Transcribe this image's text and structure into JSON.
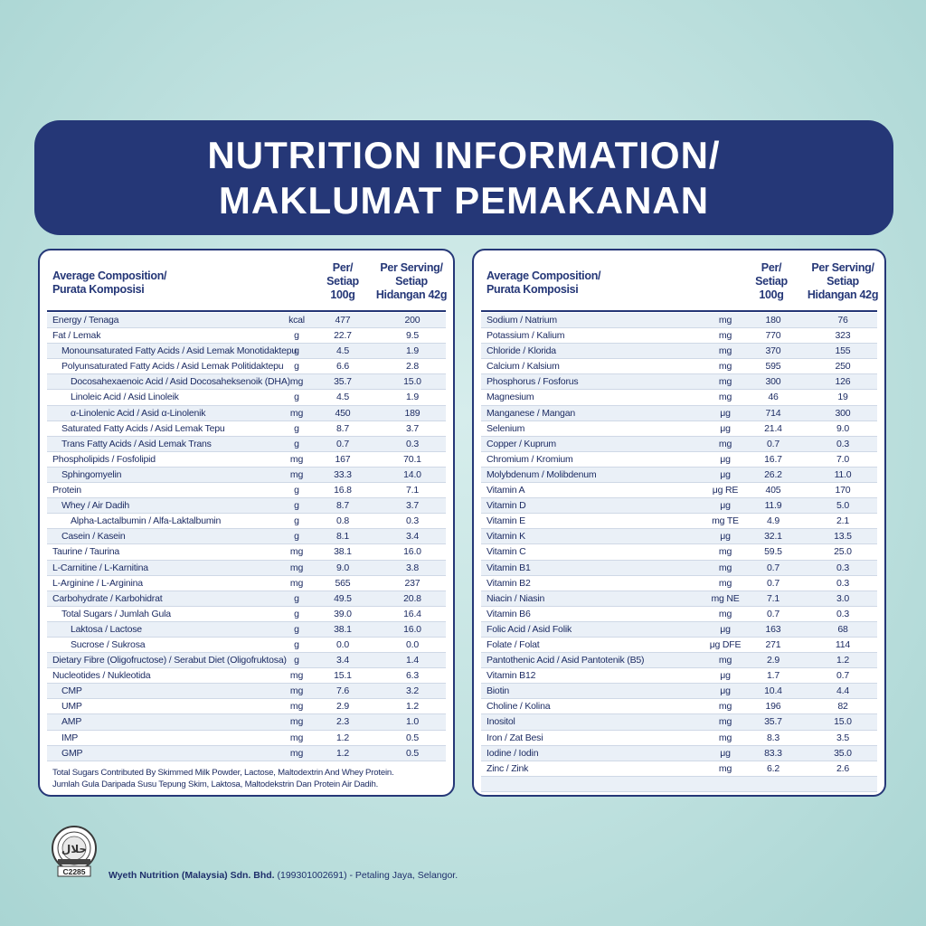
{
  "banner": {
    "line1": "NUTRITION INFORMATION/",
    "line2": "MAKLUMAT PEMAKANAN"
  },
  "left": {
    "header": {
      "title_line1": "Average Composition/",
      "title_line2": "Purata Komposisi",
      "col1_line1": "Per/",
      "col1_line2": "Setiap",
      "col1_line3": "100g",
      "col2_line1": "Per Serving/",
      "col2_line2": "Setiap",
      "col2_line3": "Hidangan 42g"
    },
    "rows": [
      {
        "name": "Energy / Tenaga",
        "indent": 0,
        "unit": "kcal",
        "v1": "477",
        "v2": "200"
      },
      {
        "name": "Fat / Lemak",
        "indent": 0,
        "unit": "g",
        "v1": "22.7",
        "v2": "9.5"
      },
      {
        "name": "Monounsaturated Fatty Acids / Asid Lemak Monotidaktepu",
        "indent": 1,
        "unit": "g",
        "v1": "4.5",
        "v2": "1.9"
      },
      {
        "name": "Polyunsaturated Fatty Acids / Asid Lemak Politidaktepu",
        "indent": 1,
        "unit": "g",
        "v1": "6.6",
        "v2": "2.8"
      },
      {
        "name": "Docosahexaenoic Acid / Asid Docosaheksenoik (DHA)",
        "indent": 2,
        "unit": "mg",
        "v1": "35.7",
        "v2": "15.0"
      },
      {
        "name": "Linoleic Acid / Asid Linoleik",
        "indent": 2,
        "unit": "g",
        "v1": "4.5",
        "v2": "1.9"
      },
      {
        "name": "α-Linolenic Acid / Asid α-Linolenik",
        "indent": 2,
        "unit": "mg",
        "v1": "450",
        "v2": "189"
      },
      {
        "name": "Saturated Fatty Acids / Asid Lemak Tepu",
        "indent": 1,
        "unit": "g",
        "v1": "8.7",
        "v2": "3.7"
      },
      {
        "name": "Trans Fatty Acids / Asid Lemak Trans",
        "indent": 1,
        "unit": "g",
        "v1": "0.7",
        "v2": "0.3"
      },
      {
        "name": "Phospholipids / Fosfolipid",
        "indent": 0,
        "unit": "mg",
        "v1": "167",
        "v2": "70.1"
      },
      {
        "name": "Sphingomyelin",
        "indent": 1,
        "unit": "mg",
        "v1": "33.3",
        "v2": "14.0"
      },
      {
        "name": "Protein",
        "indent": 0,
        "unit": "g",
        "v1": "16.8",
        "v2": "7.1"
      },
      {
        "name": "Whey / Air Dadih",
        "indent": 1,
        "unit": "g",
        "v1": "8.7",
        "v2": "3.7"
      },
      {
        "name": "Alpha-Lactalbumin / Alfa-Laktalbumin",
        "indent": 2,
        "unit": "g",
        "v1": "0.8",
        "v2": "0.3"
      },
      {
        "name": "Casein / Kasein",
        "indent": 1,
        "unit": "g",
        "v1": "8.1",
        "v2": "3.4"
      },
      {
        "name": "Taurine / Taurina",
        "indent": 0,
        "unit": "mg",
        "v1": "38.1",
        "v2": "16.0"
      },
      {
        "name": "L-Carnitine / L-Karnitina",
        "indent": 0,
        "unit": "mg",
        "v1": "9.0",
        "v2": "3.8"
      },
      {
        "name": "L-Arginine / L-Arginina",
        "indent": 0,
        "unit": "mg",
        "v1": "565",
        "v2": "237"
      },
      {
        "name": "Carbohydrate / Karbohidrat",
        "indent": 0,
        "unit": "g",
        "v1": "49.5",
        "v2": "20.8"
      },
      {
        "name": "Total Sugars / Jumlah Gula",
        "indent": 1,
        "unit": "g",
        "v1": "39.0",
        "v2": "16.4"
      },
      {
        "name": "Laktosa / Lactose",
        "indent": 2,
        "unit": "g",
        "v1": "38.1",
        "v2": "16.0"
      },
      {
        "name": "Sucrose / Sukrosa",
        "indent": 2,
        "unit": "g",
        "v1": "0.0",
        "v2": "0.0"
      },
      {
        "name": "Dietary Fibre (Oligofructose) / Serabut Diet (Oligofruktosa)",
        "indent": 0,
        "unit": "g",
        "v1": "3.4",
        "v2": "1.4"
      },
      {
        "name": "Nucleotides / Nukleotida",
        "indent": 0,
        "unit": "mg",
        "v1": "15.1",
        "v2": "6.3"
      },
      {
        "name": "CMP",
        "indent": 1,
        "unit": "mg",
        "v1": "7.6",
        "v2": "3.2"
      },
      {
        "name": "UMP",
        "indent": 1,
        "unit": "mg",
        "v1": "2.9",
        "v2": "1.2"
      },
      {
        "name": "AMP",
        "indent": 1,
        "unit": "mg",
        "v1": "2.3",
        "v2": "1.0"
      },
      {
        "name": "IMP",
        "indent": 1,
        "unit": "mg",
        "v1": "1.2",
        "v2": "0.5"
      },
      {
        "name": "GMP",
        "indent": 1,
        "unit": "mg",
        "v1": "1.2",
        "v2": "0.5"
      }
    ],
    "note_line1": "Total Sugars Contributed By Skimmed Milk Powder, Lactose, Maltodextrin And Whey Protein.",
    "note_line2": "Jumlah Gula Daripada Susu Tepung Skim, Laktosa, Maltodekstrin Dan Protein Air Dadih."
  },
  "right": {
    "header": {
      "title_line1": "Average Composition/",
      "title_line2": "Purata Komposisi",
      "col1_line1": "Per/",
      "col1_line2": "Setiap",
      "col1_line3": "100g",
      "col2_line1": "Per Serving/",
      "col2_line2": "Setiap",
      "col2_line3": "Hidangan 42g"
    },
    "rows": [
      {
        "name": "Sodium / Natrium",
        "unit": "mg",
        "v1": "180",
        "v2": "76"
      },
      {
        "name": "Potassium / Kalium",
        "unit": "mg",
        "v1": "770",
        "v2": "323"
      },
      {
        "name": "Chloride / Klorida",
        "unit": "mg",
        "v1": "370",
        "v2": "155"
      },
      {
        "name": "Calcium / Kalsium",
        "unit": "mg",
        "v1": "595",
        "v2": "250"
      },
      {
        "name": "Phosphorus / Fosforus",
        "unit": "mg",
        "v1": "300",
        "v2": "126"
      },
      {
        "name": "Magnesium",
        "unit": "mg",
        "v1": "46",
        "v2": "19"
      },
      {
        "name": "Manganese / Mangan",
        "unit": "μg",
        "v1": "714",
        "v2": "300"
      },
      {
        "name": "Selenium",
        "unit": "μg",
        "v1": "21.4",
        "v2": "9.0"
      },
      {
        "name": "Copper / Kuprum",
        "unit": "mg",
        "v1": "0.7",
        "v2": "0.3"
      },
      {
        "name": "Chromium / Kromium",
        "unit": "μg",
        "v1": "16.7",
        "v2": "7.0"
      },
      {
        "name": "Molybdenum / Molibdenum",
        "unit": "μg",
        "v1": "26.2",
        "v2": "11.0"
      },
      {
        "name": "Vitamin A",
        "unit": "μg RE",
        "v1": "405",
        "v2": "170"
      },
      {
        "name": "Vitamin D",
        "unit": "μg",
        "v1": "11.9",
        "v2": "5.0"
      },
      {
        "name": "Vitamin E",
        "unit": "mg TE",
        "v1": "4.9",
        "v2": "2.1"
      },
      {
        "name": "Vitamin K",
        "unit": "μg",
        "v1": "32.1",
        "v2": "13.5"
      },
      {
        "name": "Vitamin C",
        "unit": "mg",
        "v1": "59.5",
        "v2": "25.0"
      },
      {
        "name": "Vitamin B1",
        "unit": "mg",
        "v1": "0.7",
        "v2": "0.3"
      },
      {
        "name": "Vitamin B2",
        "unit": "mg",
        "v1": "0.7",
        "v2": "0.3"
      },
      {
        "name": "Niacin / Niasin",
        "unit": "mg NE",
        "v1": "7.1",
        "v2": "3.0"
      },
      {
        "name": "Vitamin B6",
        "unit": "mg",
        "v1": "0.7",
        "v2": "0.3"
      },
      {
        "name": "Folic Acid / Asid Folik",
        "unit": "μg",
        "v1": "163",
        "v2": "68"
      },
      {
        "name": "Folate / Folat",
        "unit": "μg DFE",
        "v1": "271",
        "v2": "114"
      },
      {
        "name": "Pantothenic Acid / Asid Pantotenik (B5)",
        "unit": "mg",
        "v1": "2.9",
        "v2": "1.2"
      },
      {
        "name": "Vitamin B12",
        "unit": "μg",
        "v1": "1.7",
        "v2": "0.7"
      },
      {
        "name": "Biotin",
        "unit": "μg",
        "v1": "10.4",
        "v2": "4.4"
      },
      {
        "name": "Choline / Kolina",
        "unit": "mg",
        "v1": "196",
        "v2": "82"
      },
      {
        "name": "Inositol",
        "unit": "mg",
        "v1": "35.7",
        "v2": "15.0"
      },
      {
        "name": "Iron / Zat Besi",
        "unit": "mg",
        "v1": "8.3",
        "v2": "3.5"
      },
      {
        "name": "Iodine / Iodin",
        "unit": "μg",
        "v1": "83.3",
        "v2": "35.0"
      },
      {
        "name": "Zinc / Zink",
        "unit": "mg",
        "v1": "6.2",
        "v2": "2.6"
      },
      {
        "name": "",
        "unit": "",
        "v1": "",
        "v2": ""
      }
    ]
  },
  "logo": {
    "code": "C2285",
    "icon": "halal-certification-seal-icon"
  },
  "footer": {
    "company": "Wyeth Nutrition (Malaysia) Sdn. Bhd.",
    "rest": " (199301002691) - Petaling Jaya, Selangor."
  }
}
